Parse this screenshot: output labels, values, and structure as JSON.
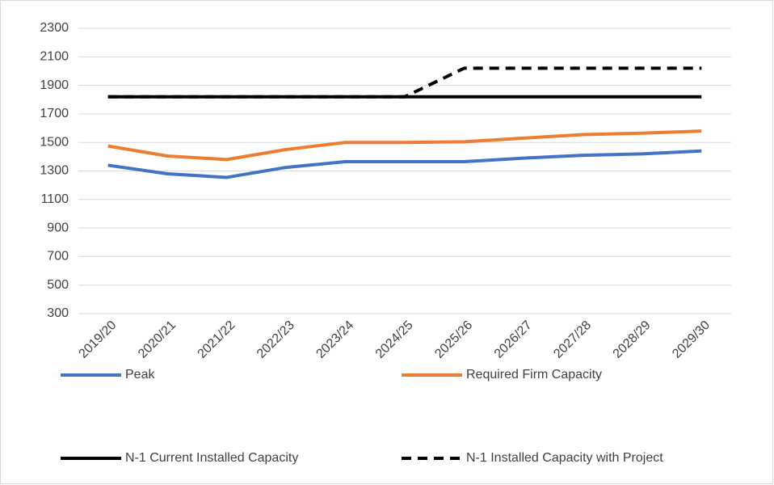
{
  "chart_data": {
    "type": "line",
    "categories": [
      "2019/20",
      "2020/21",
      "2021/22",
      "2022/23",
      "2023/24",
      "2024/25",
      "2025/26",
      "2026/27",
      "2027/28",
      "2028/29",
      "2029/30"
    ],
    "series": [
      {
        "name": "Peak",
        "color": "#4472c4",
        "values": [
          1340,
          1280,
          1255,
          1325,
          1365,
          1365,
          1365,
          1390,
          1410,
          1420,
          1440
        ]
      },
      {
        "name": "Required Firm Capacity",
        "color": "#ed7d31",
        "values": [
          1475,
          1405,
          1380,
          1450,
          1500,
          1500,
          1505,
          1530,
          1555,
          1565,
          1580
        ]
      },
      {
        "name": "N-1 Current Installed Capacity",
        "color": "#000000",
        "values": [
          1820,
          1820,
          1820,
          1820,
          1820,
          1820,
          1820,
          1820,
          1820,
          1820,
          1820
        ]
      },
      {
        "name": "N-1 Installed Capacity with Project",
        "color": "#000000",
        "dashed": true,
        "values": [
          1820,
          1820,
          1820,
          1820,
          1820,
          1820,
          2020,
          2020,
          2020,
          2020,
          2020
        ]
      }
    ],
    "ylim": [
      300,
      2300
    ],
    "yticks": [
      300,
      500,
      700,
      900,
      1100,
      1300,
      1500,
      1700,
      1900,
      2100,
      2300
    ],
    "grid": true,
    "legend": "bottom"
  }
}
